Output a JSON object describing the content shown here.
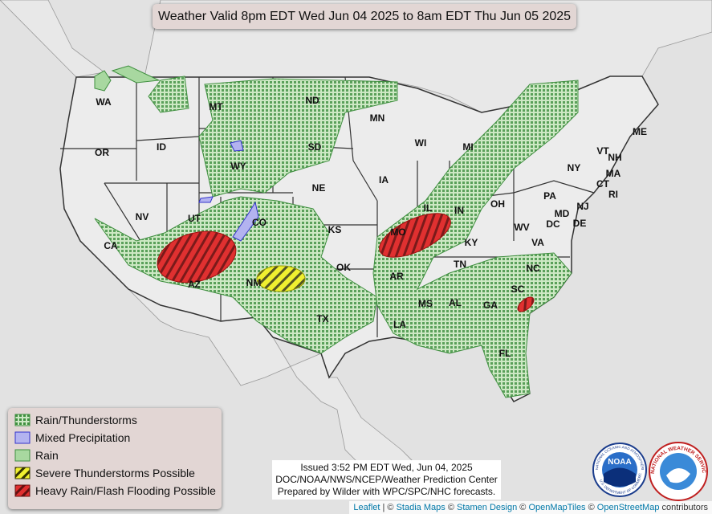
{
  "header": {
    "title": "Weather Valid 8pm EDT Wed Jun 04 2025 to 8am EDT Thu Jun 05 2025"
  },
  "states": [
    "WA",
    "MT",
    "ND",
    "MN",
    "OR",
    "ID",
    "WY",
    "SD",
    "WI",
    "MI",
    "ME",
    "VT",
    "NH",
    "MA",
    "NY",
    "CT",
    "RI",
    "IA",
    "NE",
    "UT",
    "NV",
    "CO",
    "IL",
    "IN",
    "OH",
    "PA",
    "NJ",
    "MD",
    "DC",
    "DE",
    "KS",
    "MO",
    "WV",
    "VA",
    "CA",
    "KY",
    "OK",
    "TN",
    "NC",
    "AZ",
    "NM",
    "AR",
    "SC",
    "MS",
    "AL",
    "GA",
    "TX",
    "LA",
    "FL"
  ],
  "legend": [
    {
      "label": "Rain/Thunderstorms",
      "color": "#3f8f3f",
      "fill": "#cde8c4",
      "hatch": "dots"
    },
    {
      "label": "Mixed Precipitation",
      "color": "#3333cc",
      "fill": "#b3b3f0",
      "hatch": "none"
    },
    {
      "label": "Rain",
      "color": "#3f8f3f",
      "fill": "#a8d8a0",
      "hatch": "none"
    },
    {
      "label": "Severe Thunderstorms Possible",
      "color": "#333300",
      "fill": "#f0f030",
      "hatch": "stripes"
    },
    {
      "label": "Heavy Rain/Flash Flooding Possible",
      "color": "#661111",
      "fill": "#e03030",
      "hatch": "stripes"
    }
  ],
  "issued": [
    "Issued  3:52 PM EDT  Wed, Jun 04, 2025",
    "DOC/NOAA/NWS/NCEP/Weather Prediction Center",
    "Prepared by Wilder with WPC/SPC/NHC forecasts."
  ],
  "logos": {
    "noaa": "NOAA",
    "noaa_ring": "NATIONAL OCEANIC AND ATMOSPHERIC ADMINISTRATION",
    "noaa_ring_bottom": "U.S. DEPARTMENT OF COMMERCE",
    "nws_ring": "NATIONAL WEATHER SERVICE"
  },
  "attribution": [
    {
      "text": "Leaflet",
      "link": true
    },
    {
      "text": "| ©",
      "link": false
    },
    {
      "text": "Stadia Maps",
      "link": true
    },
    {
      "text": "©",
      "link": false
    },
    {
      "text": "Stamen Design",
      "link": true
    },
    {
      "text": "©",
      "link": false
    },
    {
      "text": "OpenMapTiles",
      "link": true
    },
    {
      "text": "©",
      "link": false
    },
    {
      "text": "OpenStreetMap",
      "link": true
    },
    {
      "text": "contributors",
      "link": false
    }
  ]
}
